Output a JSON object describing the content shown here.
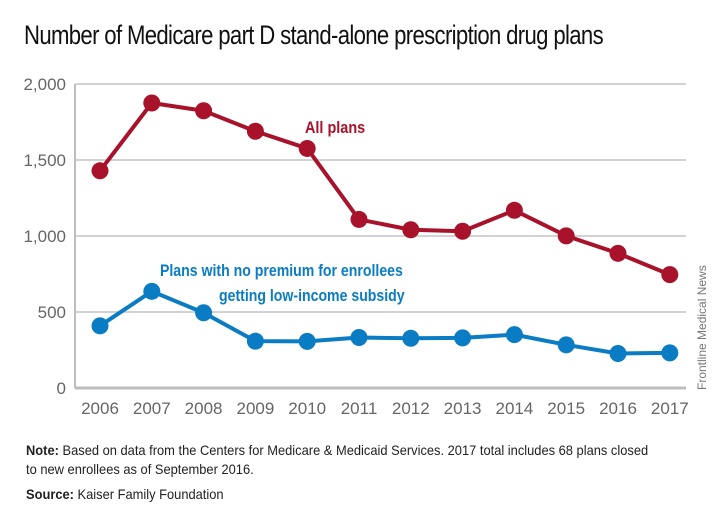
{
  "chart_data": {
    "type": "line",
    "title": "Number of Medicare part D stand-alone prescription drug plans",
    "xlabel": "",
    "ylabel": "",
    "x": [
      "2006",
      "2007",
      "2008",
      "2009",
      "2010",
      "2011",
      "2012",
      "2013",
      "2014",
      "2015",
      "2016",
      "2017"
    ],
    "ylim": [
      0,
      2000
    ],
    "yticks": [
      0,
      500,
      1000,
      1500,
      2000
    ],
    "ytick_labels": [
      "0",
      "500",
      "1,000",
      "1,500",
      "2,000"
    ],
    "grid": true,
    "series": [
      {
        "name": "All plans",
        "color": "#a8122a",
        "values": [
          1429,
          1875,
          1824,
          1689,
          1576,
          1109,
          1041,
          1031,
          1169,
          1001,
          886,
          746
        ]
      },
      {
        "name": "Plans with no premium for enrollees getting low-income subsidy",
        "label_lines": [
          "Plans with no premium for enrollees",
          "getting low-income subsidy"
        ],
        "color": "#0a7cc4",
        "values": [
          409,
          636,
          495,
          308,
          307,
          332,
          327,
          330,
          351,
          284,
          227,
          231
        ]
      }
    ]
  },
  "credit": "Frontline Medical News",
  "note": {
    "label": "Note:",
    "text": " Based on data from the Centers for Medicare & Medicaid Services. 2017 total includes 68 plans closed to new enrollees as of September 2016."
  },
  "source": {
    "label": "Source:",
    "text": " Kaiser Family Foundation"
  }
}
